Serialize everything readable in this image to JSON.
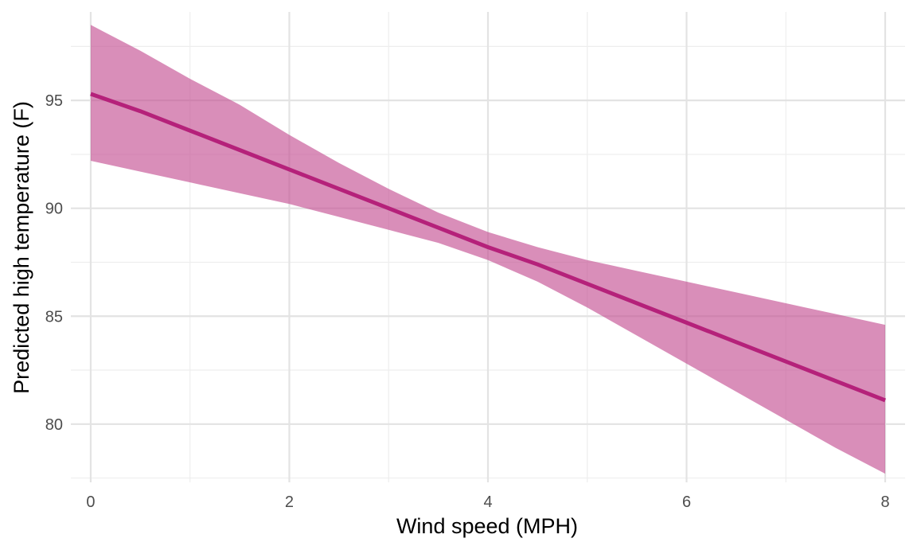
{
  "chart_data": {
    "type": "line",
    "title": "",
    "xlabel": "Wind speed (MPH)",
    "ylabel": "Predicted high temperature (F)",
    "xlim": [
      -0.2,
      8.2
    ],
    "ylim": [
      77.3,
      99.1
    ],
    "x_ticks": [
      0,
      2,
      4,
      6,
      8
    ],
    "y_ticks": [
      80,
      85,
      90,
      95
    ],
    "x_tick_labels": [
      "0",
      "2",
      "4",
      "6",
      "8"
    ],
    "y_tick_labels": [
      "80",
      "85",
      "90",
      "95"
    ],
    "grid": true,
    "colors": {
      "line": "#b5217a",
      "ribbon": "#c45193"
    },
    "series": [
      {
        "x": [
          0,
          0.5,
          1,
          1.5,
          2,
          2.5,
          3,
          3.5,
          4,
          4.5,
          5,
          5.5,
          6,
          6.5,
          7,
          7.5,
          8
        ],
        "y": [
          95.3,
          94.5,
          93.6,
          92.7,
          91.8,
          90.9,
          90.0,
          89.1,
          88.2,
          87.4,
          86.5,
          85.6,
          84.7,
          83.8,
          82.9,
          82.0,
          81.1
        ],
        "lower": [
          92.2,
          91.7,
          91.2,
          90.7,
          90.2,
          89.6,
          89.0,
          88.4,
          87.6,
          86.6,
          85.4,
          84.1,
          82.8,
          81.5,
          80.2,
          78.9,
          77.7
        ],
        "upper": [
          98.5,
          97.3,
          96.0,
          94.8,
          93.4,
          92.1,
          90.9,
          89.8,
          88.9,
          88.2,
          87.6,
          87.1,
          86.6,
          86.1,
          85.6,
          85.1,
          84.6
        ]
      }
    ]
  }
}
